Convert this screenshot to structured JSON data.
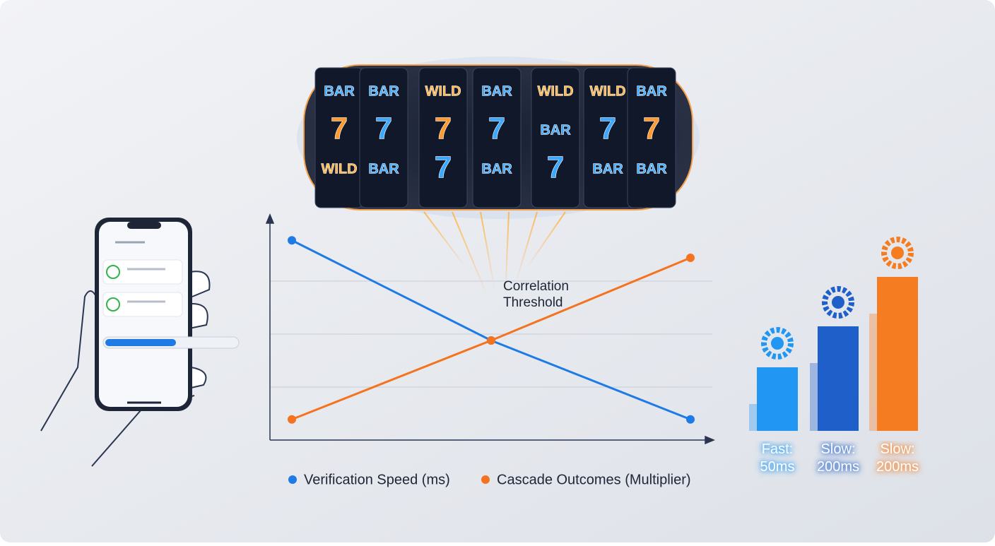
{
  "chart_data": [
    {
      "type": "line",
      "annotation": "Correlation Threshold",
      "categories": [
        null,
        null,
        null
      ],
      "series": [
        {
          "name": "Verification Speed (ms)",
          "color": "#1e7be6",
          "values": [
            3.77,
            1.88,
            0.39
          ]
        },
        {
          "name": "Cascade Outcomes (Multiplier)",
          "color": "#f5731e",
          "values": [
            0.39,
            1.88,
            3.44
          ]
        }
      ],
      "ylim": [
        0,
        4
      ],
      "yticks": [
        1,
        2,
        3
      ],
      "grid": true
    },
    {
      "type": "bar",
      "categories": [
        "Fast: 50ms",
        "Slow: 200ms",
        "Slow: 200ms"
      ],
      "values": [
        90,
        148,
        218
      ],
      "colors": [
        "#2196f3",
        "#1f5fc9",
        "#f57c20"
      ],
      "ylim": [
        0,
        250
      ]
    }
  ],
  "reels": [
    [
      "BAR",
      "7",
      "WILD"
    ],
    [
      "BAR",
      "7",
      "BAR"
    ],
    [
      "WILD",
      "7",
      "7"
    ],
    [
      "BAR",
      "7",
      "BAR"
    ],
    [
      "WILD",
      "BAR",
      "7"
    ],
    [
      "WILD",
      "7",
      "BAR"
    ],
    [
      "BAR",
      "7",
      "BAR"
    ]
  ]
}
